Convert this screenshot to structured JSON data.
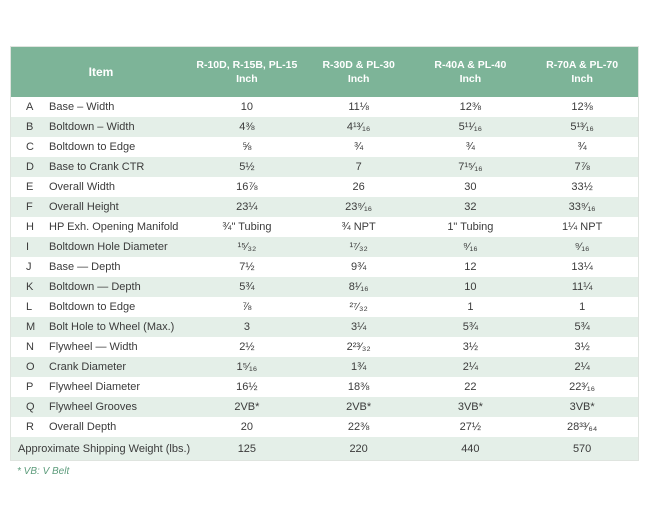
{
  "colors": {
    "header_green": "#7db498",
    "stripe_green": "#e4efe8",
    "footnote_green": "#5d9c7c",
    "text": "#3b3b3b"
  },
  "table": {
    "item_header": "Item",
    "columns": [
      {
        "model": "R-10D, R-15B, PL-15",
        "unit": "Inch"
      },
      {
        "model": "R-30D & PL-30",
        "unit": "Inch"
      },
      {
        "model": "R-40A & PL-40",
        "unit": "Inch"
      },
      {
        "model": "R-70A & PL-70",
        "unit": "Inch"
      }
    ],
    "rows": [
      {
        "letter": "A",
        "item": "Base – Width",
        "values": [
          "10",
          "11⅛",
          "12⅜",
          "12⅜"
        ]
      },
      {
        "letter": "B",
        "item": "Boltdown – Width",
        "values": [
          "4⅜",
          "4¹³⁄₁₆",
          "5¹¹⁄₁₆",
          "5¹³⁄₁₆"
        ]
      },
      {
        "letter": "C",
        "item": "Boltdown to Edge",
        "values": [
          "⅝",
          "¾",
          "¾",
          "¾"
        ]
      },
      {
        "letter": "D",
        "item": "Base to Crank CTR",
        "values": [
          "5½",
          "7",
          "7¹⁵⁄₁₆",
          "7⅞"
        ]
      },
      {
        "letter": "E",
        "item": "Overall Width",
        "values": [
          "16⅞",
          "26",
          "30",
          "33½"
        ]
      },
      {
        "letter": "F",
        "item": "Overall Height",
        "values": [
          "23¼",
          "23⁹⁄₁₆",
          "32",
          "33⁹⁄₁₆"
        ]
      },
      {
        "letter": "H",
        "item": "HP Exh. Opening Manifold",
        "values": [
          "¾\" Tubing",
          "¾ NPT",
          "1\" Tubing",
          "1¼ NPT"
        ]
      },
      {
        "letter": "I",
        "item": "Boltdown Hole Diameter",
        "values": [
          "¹⁵⁄₃₂",
          "¹⁷⁄₃₂",
          "⁹⁄₁₆",
          "⁹⁄₁₆"
        ]
      },
      {
        "letter": "J",
        "item": "Base — Depth",
        "values": [
          "7½",
          "9¾",
          "12",
          "13¼"
        ]
      },
      {
        "letter": "K",
        "item": "Boltdown — Depth",
        "values": [
          "5¾",
          "8¹⁄₁₆",
          "10",
          "11¼"
        ]
      },
      {
        "letter": "L",
        "item": "Boltdown to Edge",
        "values": [
          "⅞",
          "²⁷⁄₃₂",
          "1",
          "1"
        ]
      },
      {
        "letter": "M",
        "item": "Bolt Hole to Wheel (Max.)",
        "values": [
          "3",
          "3¼",
          "5¾",
          "5¾"
        ]
      },
      {
        "letter": "N",
        "item": "Flywheel — Width",
        "values": [
          "2½",
          "2²³⁄₃₂",
          "3½",
          "3½"
        ]
      },
      {
        "letter": "O",
        "item": "Crank Diameter",
        "values": [
          "1⁵⁄₁₆",
          "1¾",
          "2¼",
          "2¼"
        ]
      },
      {
        "letter": "P",
        "item": "Flywheel Diameter",
        "values": [
          "16½",
          "18⅜",
          "22",
          "22³⁄₁₆"
        ]
      },
      {
        "letter": "Q",
        "item": "Flywheel Grooves",
        "values": [
          "2VB*",
          "2VB*",
          "3VB*",
          "3VB*"
        ]
      },
      {
        "letter": "R",
        "item": "Overall Depth",
        "values": [
          "20",
          "22⅜",
          "27½",
          "28³³⁄₆₄"
        ]
      }
    ],
    "footer": {
      "label": "Approximate Shipping Weight (lbs.)",
      "values": [
        "125",
        "220",
        "440",
        "570"
      ]
    },
    "footnote": "* VB: V Belt"
  }
}
